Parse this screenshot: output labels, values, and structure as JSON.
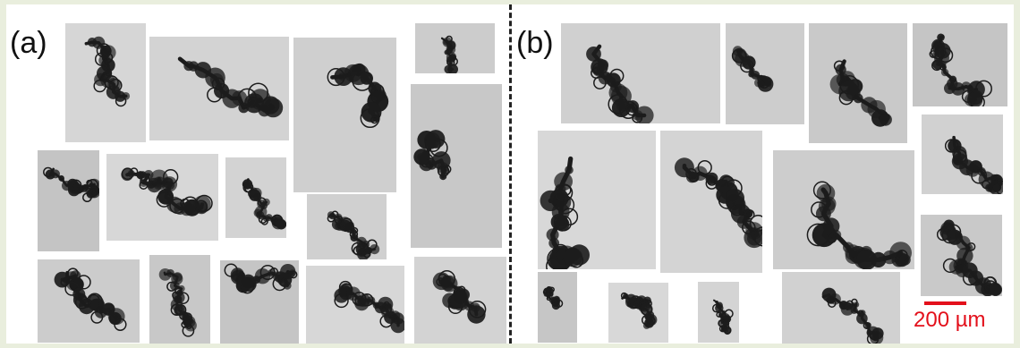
{
  "figure": {
    "panel_a_label": "(a)",
    "panel_b_label": "(b)",
    "scale_bar_text": "200 µm",
    "colors": {
      "scale_bar": "#e3101b",
      "particle": "#1c1c1c",
      "tile_background": "#c9c9c9",
      "frame": "#e9eedd",
      "divider": "#222222"
    }
  }
}
